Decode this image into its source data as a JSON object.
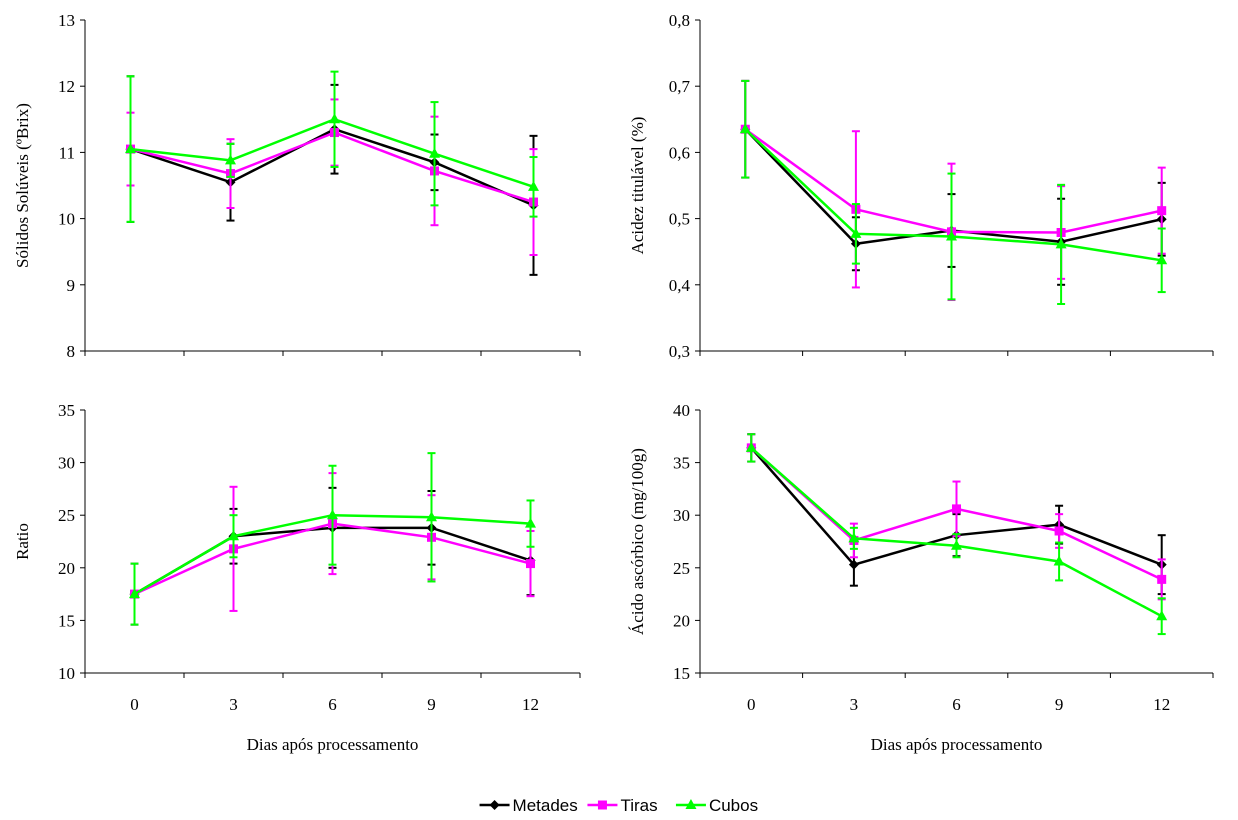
{
  "legend": {
    "placement": "bottom-center",
    "entries": [
      {
        "name": "Metades",
        "color": "#000000",
        "marker": "diamond"
      },
      {
        "name": "Tiras",
        "color": "#ff00ff",
        "marker": "square"
      },
      {
        "name": "Cubos",
        "color": "#00ff00",
        "marker": "triangle"
      }
    ]
  },
  "chart_data": [
    {
      "type": "line",
      "title": "",
      "xlabel": "",
      "ylabel": "Sólidos Solúveis (ºBrix)",
      "x": [
        0,
        3,
        6,
        9,
        12
      ],
      "ylim": [
        8,
        13
      ],
      "yticks": [
        "8",
        "9",
        "10",
        "11",
        "12",
        "13"
      ],
      "xticks": [],
      "grid": false,
      "series": [
        {
          "name": "Metades",
          "values": [
            11.05,
            10.55,
            11.35,
            10.85,
            10.2
          ],
          "errors": [
            1.1,
            0.58,
            0.67,
            0.42,
            1.05
          ]
        },
        {
          "name": "Tiras",
          "values": [
            11.05,
            10.68,
            11.3,
            10.72,
            10.25
          ],
          "errors": [
            0.55,
            0.52,
            0.5,
            0.82,
            0.8
          ]
        },
        {
          "name": "Cubos",
          "values": [
            11.05,
            10.88,
            11.5,
            10.98,
            10.48
          ],
          "errors": [
            1.1,
            0.25,
            0.72,
            0.78,
            0.45
          ]
        }
      ]
    },
    {
      "type": "line",
      "title": "",
      "xlabel": "",
      "ylabel": "Acidez titulável (%)",
      "x": [
        0,
        3,
        6,
        9,
        12
      ],
      "ylim": [
        0.3,
        0.8
      ],
      "yticks": [
        "0,3",
        "0,4",
        "0,5",
        "0,6",
        "0,7",
        "0,8"
      ],
      "xticks": [],
      "grid": false,
      "series": [
        {
          "name": "Metades",
          "values": [
            0.635,
            0.462,
            0.482,
            0.465,
            0.499
          ],
          "errors": [
            0.073,
            0.04,
            0.055,
            0.065,
            0.055
          ]
        },
        {
          "name": "Tiras",
          "values": [
            0.635,
            0.514,
            0.48,
            0.479,
            0.512
          ],
          "errors": [
            0.073,
            0.118,
            0.103,
            0.07,
            0.065
          ]
        },
        {
          "name": "Cubos",
          "values": [
            0.635,
            0.477,
            0.473,
            0.461,
            0.437
          ],
          "errors": [
            0.073,
            0.045,
            0.095,
            0.09,
            0.048
          ]
        }
      ]
    },
    {
      "type": "line",
      "title": "",
      "xlabel": "Dias após processamento",
      "ylabel": "Ratio",
      "x": [
        0,
        3,
        6,
        9,
        12
      ],
      "ylim": [
        10,
        35
      ],
      "yticks": [
        "10",
        "15",
        "20",
        "25",
        "30",
        "35"
      ],
      "xticks": [
        "0",
        "3",
        "6",
        "9",
        "12"
      ],
      "grid": false,
      "series": [
        {
          "name": "Metades",
          "values": [
            17.5,
            23.0,
            23.8,
            23.8,
            20.7
          ],
          "errors": [
            2.9,
            2.6,
            3.8,
            3.5,
            3.3
          ]
        },
        {
          "name": "Tiras",
          "values": [
            17.5,
            21.8,
            24.2,
            22.9,
            20.4
          ],
          "errors": [
            2.9,
            5.9,
            4.8,
            4.0,
            3.1
          ]
        },
        {
          "name": "Cubos",
          "values": [
            17.5,
            23.0,
            25.0,
            24.8,
            24.2
          ],
          "errors": [
            2.9,
            2.0,
            4.7,
            6.1,
            2.2
          ]
        }
      ]
    },
    {
      "type": "line",
      "title": "",
      "xlabel": "Dias após processamento",
      "ylabel": "Ácido ascórbico (mg/100g)",
      "x": [
        0,
        3,
        6,
        9,
        12
      ],
      "ylim": [
        15,
        40
      ],
      "yticks": [
        "15",
        "20",
        "25",
        "30",
        "35",
        "40"
      ],
      "xticks": [
        "0",
        "3",
        "6",
        "9",
        "12"
      ],
      "grid": false,
      "series": [
        {
          "name": "Metades",
          "values": [
            36.4,
            25.3,
            28.1,
            29.1,
            25.3
          ],
          "errors": [
            1.3,
            2.0,
            2.0,
            1.8,
            2.8
          ]
        },
        {
          "name": "Tiras",
          "values": [
            36.4,
            27.6,
            30.6,
            28.5,
            23.9
          ],
          "errors": [
            1.3,
            1.6,
            2.6,
            1.6,
            1.9
          ]
        },
        {
          "name": "Cubos",
          "values": [
            36.4,
            27.8,
            27.1,
            25.6,
            20.4
          ],
          "errors": [
            1.3,
            1.0,
            1.1,
            1.8,
            1.7
          ]
        }
      ]
    }
  ]
}
